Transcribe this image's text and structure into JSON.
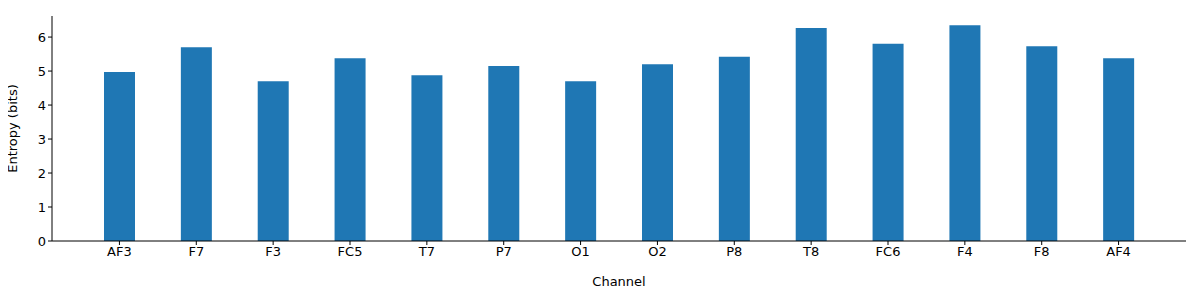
{
  "chart_data": {
    "type": "bar",
    "x_label": "Channel",
    "y_label": "Entropy (bits)",
    "categories": [
      "AF3",
      "F7",
      "F3",
      "FC5",
      "T7",
      "P7",
      "O1",
      "O2",
      "P8",
      "T8",
      "FC6",
      "F4",
      "F8",
      "AF4"
    ],
    "values": [
      4.97,
      5.7,
      4.7,
      5.38,
      4.88,
      5.15,
      4.7,
      5.2,
      5.42,
      6.27,
      5.8,
      6.35,
      5.73,
      5.38
    ],
    "color": "#1f77b4",
    "ylim": [
      0,
      6.62
    ],
    "yticks": [
      0,
      1,
      2,
      3,
      4,
      5,
      6
    ],
    "grid": false
  }
}
